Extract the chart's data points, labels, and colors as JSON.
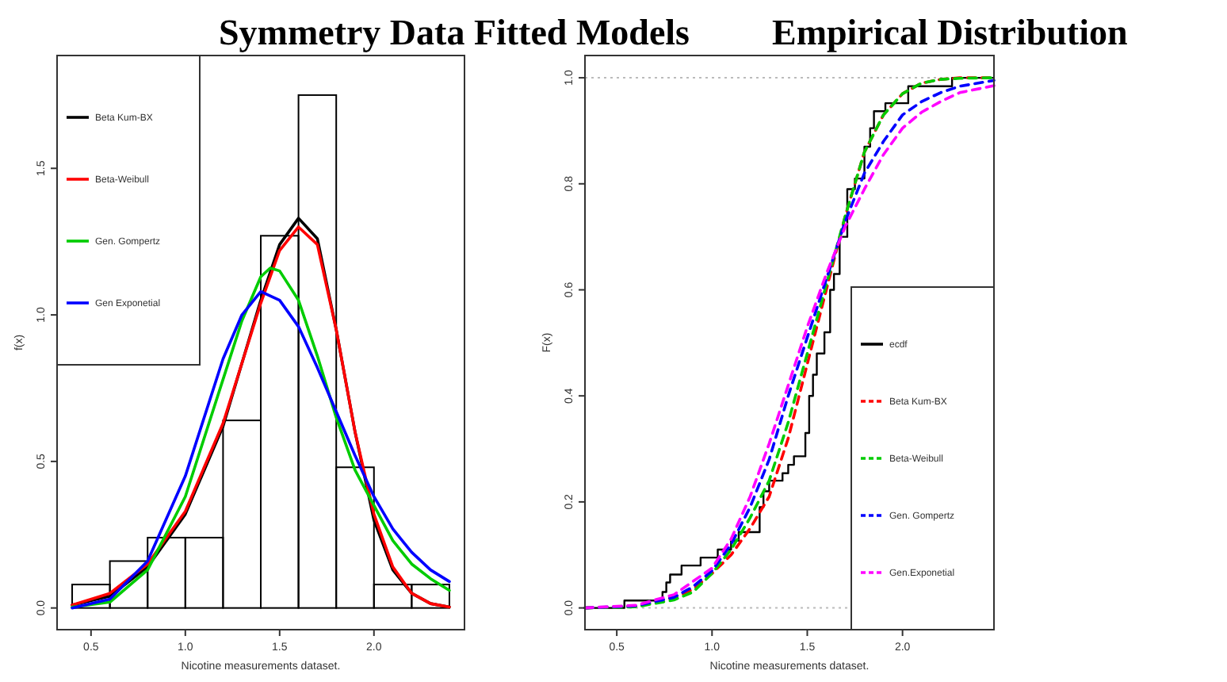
{
  "chart_data": [
    {
      "type": "histogram",
      "title": "Symmetry Data Fitted Models",
      "xlabel": "Nicotine measurements dataset.",
      "ylabel": "f(x)",
      "color": "#000000",
      "bins": [
        0.4,
        0.6,
        0.8,
        1.0,
        1.2,
        1.4,
        1.6,
        1.8,
        2.0,
        2.2,
        2.4
      ],
      "values": [
        0.08,
        0.16,
        0.24,
        0.24,
        0.64,
        1.27,
        1.75,
        0.48,
        0.08,
        0.08
      ],
      "xlim": [
        0.32,
        2.48
      ],
      "ylim": [
        -0.074,
        1.885
      ],
      "xticks": [
        {
          "value": 0.5,
          "label": "0.5"
        },
        {
          "value": 1,
          "label": "1.0"
        },
        {
          "value": 1.5,
          "label": "1.5"
        },
        {
          "value": 2,
          "label": "2.0"
        }
      ],
      "yticks": [
        {
          "value": 0,
          "label": "0.0"
        },
        {
          "value": 0.5,
          "label": "0.5"
        },
        {
          "value": 1,
          "label": "1.0"
        },
        {
          "value": 1.5,
          "label": "1.5"
        }
      ],
      "legend": "top left",
      "series": [
        {
          "type": "line",
          "name": "Beta Kum-BX",
          "color": "#000000",
          "x": [
            0.4,
            0.6,
            0.8,
            1.0,
            1.2,
            1.4,
            1.5,
            1.6,
            1.7,
            1.8,
            1.9,
            2.0,
            2.1,
            2.2,
            2.3,
            2.4
          ],
          "values": [
            0.01,
            0.04,
            0.14,
            0.32,
            0.62,
            1.05,
            1.24,
            1.33,
            1.26,
            0.95,
            0.6,
            0.3,
            0.13,
            0.05,
            0.015,
            0.003
          ]
        },
        {
          "type": "line",
          "name": "Beta-Weibull",
          "color": "#ff0000",
          "x": [
            0.4,
            0.6,
            0.8,
            1.0,
            1.2,
            1.4,
            1.5,
            1.6,
            1.7,
            1.8,
            1.9,
            2.0,
            2.1,
            2.2,
            2.3,
            2.4
          ],
          "values": [
            0.01,
            0.05,
            0.15,
            0.33,
            0.63,
            1.04,
            1.22,
            1.3,
            1.24,
            0.95,
            0.6,
            0.32,
            0.14,
            0.05,
            0.015,
            0.003
          ]
        },
        {
          "type": "line",
          "name": "Gen. Gompertz",
          "color": "#00cc00",
          "x": [
            0.4,
            0.6,
            0.8,
            1.0,
            1.2,
            1.3,
            1.4,
            1.45,
            1.5,
            1.6,
            1.7,
            1.8,
            1.9,
            2.0,
            2.1,
            2.2,
            2.3,
            2.4
          ],
          "values": [
            0.003,
            0.02,
            0.13,
            0.38,
            0.78,
            0.98,
            1.13,
            1.16,
            1.15,
            1.05,
            0.86,
            0.65,
            0.47,
            0.35,
            0.23,
            0.15,
            0.1,
            0.06
          ]
        },
        {
          "type": "line",
          "name": "Gen Exponetial",
          "color": "#0000ff",
          "x": [
            0.4,
            0.6,
            0.8,
            1.0,
            1.2,
            1.3,
            1.4,
            1.5,
            1.6,
            1.7,
            1.8,
            1.9,
            2.0,
            2.1,
            2.2,
            2.3,
            2.4
          ],
          "values": [
            0.0,
            0.03,
            0.16,
            0.45,
            0.85,
            1.0,
            1.08,
            1.05,
            0.96,
            0.82,
            0.67,
            0.52,
            0.38,
            0.27,
            0.19,
            0.13,
            0.09
          ]
        }
      ]
    },
    {
      "type": "line",
      "title": "Empirical Distribution",
      "xlabel": "Nicotine measurements dataset.",
      "ylabel": "F(x)",
      "xlim": [
        0.333,
        2.48
      ],
      "ylim": [
        -0.041,
        1.042
      ],
      "xticks": [
        {
          "value": 0.5,
          "label": "0.5"
        },
        {
          "value": 1,
          "label": "1.0"
        },
        {
          "value": 1.5,
          "label": "1.5"
        },
        {
          "value": 2,
          "label": "2.0"
        }
      ],
      "yticks": [
        {
          "value": 0,
          "label": "0.0"
        },
        {
          "value": 0.2,
          "label": "0.2"
        },
        {
          "value": 0.4,
          "label": "0.4"
        },
        {
          "value": 0.6,
          "label": "0.6"
        },
        {
          "value": 0.8,
          "label": "0.8"
        },
        {
          "value": 1,
          "label": "1.0"
        }
      ],
      "ref_lines": [
        {
          "axis": "y",
          "value": 0,
          "color": "#bbbbbb",
          "line_style": "dotted"
        },
        {
          "axis": "y",
          "value": 1,
          "color": "#bbbbbb",
          "line_style": "dotted"
        }
      ],
      "legend": "bottom right",
      "series": [
        {
          "type": "step",
          "name": "ecdf",
          "color": "#000000",
          "line_style": "solid",
          "x": [
            0.333,
            0.54,
            0.74,
            0.76,
            0.78,
            0.84,
            0.94,
            1.03,
            1.1,
            1.14,
            1.25,
            1.27,
            1.3,
            1.37,
            1.4,
            1.43,
            1.49,
            1.51,
            1.53,
            1.55,
            1.59,
            1.62,
            1.64,
            1.67,
            1.71,
            1.75,
            1.8,
            1.83,
            1.85,
            1.91,
            2.03,
            2.26,
            2.48
          ],
          "values": [
            0,
            0.014,
            0.03,
            0.048,
            0.063,
            0.08,
            0.095,
            0.11,
            0.127,
            0.143,
            0.19,
            0.22,
            0.24,
            0.254,
            0.27,
            0.286,
            0.33,
            0.4,
            0.44,
            0.48,
            0.52,
            0.6,
            0.63,
            0.7,
            0.79,
            0.81,
            0.87,
            0.905,
            0.937,
            0.952,
            0.984,
            1.0,
            1.0
          ]
        },
        {
          "type": "line",
          "name": "Beta Kum-BX",
          "color": "#ff0000",
          "line_style": "dashed",
          "x": [
            0.333,
            0.6,
            0.8,
            0.9,
            1.0,
            1.1,
            1.2,
            1.3,
            1.4,
            1.5,
            1.6,
            1.7,
            1.8,
            1.9,
            2.0,
            2.1,
            2.2,
            2.3,
            2.48
          ],
          "values": [
            0,
            0.003,
            0.02,
            0.035,
            0.065,
            0.1,
            0.15,
            0.21,
            0.32,
            0.46,
            0.6,
            0.74,
            0.86,
            0.93,
            0.97,
            0.99,
            0.997,
            1.0,
            1.0
          ]
        },
        {
          "type": "line",
          "name": "Beta-Weibull",
          "color": "#00cc00",
          "line_style": "dashed",
          "x": [
            0.333,
            0.6,
            0.8,
            0.9,
            1.0,
            1.1,
            1.2,
            1.3,
            1.4,
            1.5,
            1.6,
            1.7,
            1.8,
            1.9,
            2.0,
            2.1,
            2.2,
            2.3,
            2.48
          ],
          "values": [
            0,
            0.002,
            0.015,
            0.03,
            0.065,
            0.11,
            0.17,
            0.24,
            0.35,
            0.48,
            0.61,
            0.74,
            0.86,
            0.93,
            0.97,
            0.99,
            0.997,
            0.999,
            1.0
          ]
        },
        {
          "type": "line",
          "name": "Gen. Gompertz",
          "color": "#0000ff",
          "line_style": "dashed",
          "x": [
            0.333,
            0.6,
            0.8,
            0.9,
            1.0,
            1.1,
            1.2,
            1.3,
            1.4,
            1.5,
            1.6,
            1.7,
            1.8,
            1.9,
            2.0,
            2.1,
            2.2,
            2.3,
            2.48
          ],
          "values": [
            0,
            0.004,
            0.02,
            0.04,
            0.07,
            0.12,
            0.19,
            0.28,
            0.4,
            0.51,
            0.62,
            0.73,
            0.82,
            0.88,
            0.93,
            0.955,
            0.972,
            0.984,
            0.995
          ]
        },
        {
          "type": "line",
          "name": "Gen.Exponetial",
          "color": "#ff00ff",
          "line_style": "dashed",
          "x": [
            0.333,
            0.6,
            0.8,
            0.9,
            1.0,
            1.1,
            1.2,
            1.3,
            1.4,
            1.5,
            1.6,
            1.7,
            1.8,
            1.9,
            2.0,
            2.1,
            2.2,
            2.3,
            2.48
          ],
          "values": [
            0,
            0.005,
            0.025,
            0.05,
            0.075,
            0.13,
            0.21,
            0.31,
            0.42,
            0.53,
            0.63,
            0.72,
            0.79,
            0.855,
            0.905,
            0.935,
            0.955,
            0.972,
            0.985
          ]
        }
      ]
    }
  ]
}
